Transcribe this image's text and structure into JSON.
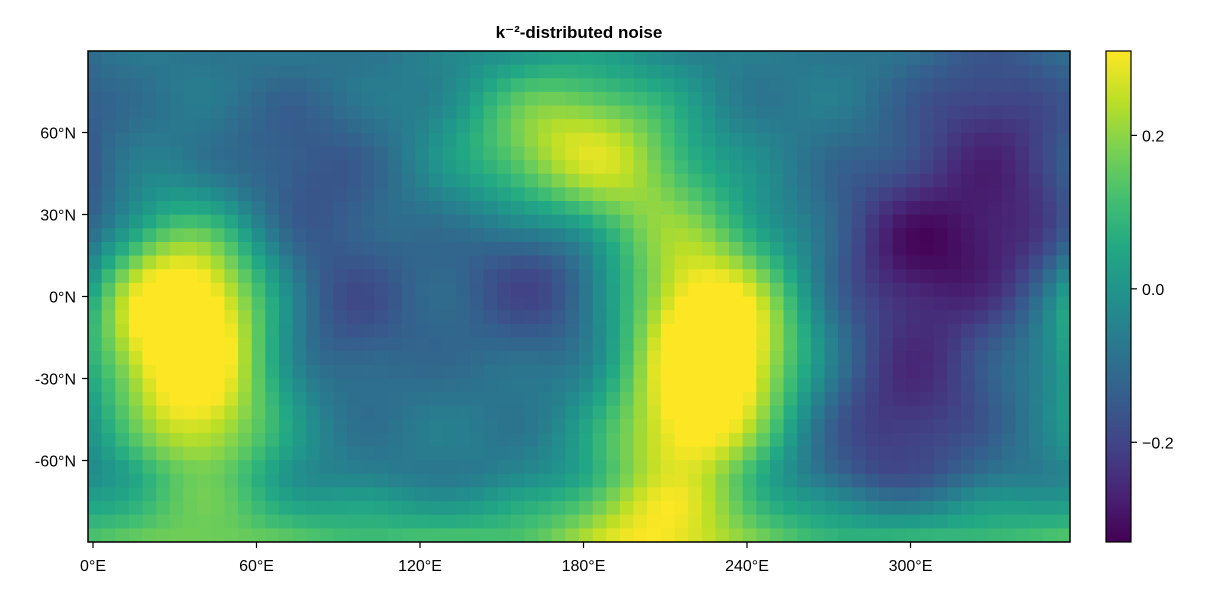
{
  "chart_data": {
    "type": "heatmap",
    "title": "k⁻²-distributed noise",
    "xlabel": "",
    "ylabel": "",
    "x_range": [
      0,
      360
    ],
    "y_range": [
      -90,
      90
    ],
    "x_ticks": [
      {
        "value": 0,
        "label": "0°E"
      },
      {
        "value": 60,
        "label": "60°E"
      },
      {
        "value": 120,
        "label": "120°E"
      },
      {
        "value": 180,
        "label": "180°E"
      },
      {
        "value": 240,
        "label": "240°E"
      },
      {
        "value": 300,
        "label": "300°E"
      }
    ],
    "y_ticks": [
      {
        "value": 60,
        "label": "60°N"
      },
      {
        "value": 30,
        "label": "30°N"
      },
      {
        "value": 0,
        "label": "0°N"
      },
      {
        "value": -30,
        "label": "-30°N"
      },
      {
        "value": -60,
        "label": "-60°N"
      }
    ],
    "colormap": "viridis",
    "colorbar": {
      "range": [
        -0.33,
        0.31
      ],
      "ticks": [
        {
          "value": 0.2,
          "label": "0.2"
        },
        {
          "value": 0.0,
          "label": "0.0"
        },
        {
          "value": -0.2,
          "label": "−0.2"
        }
      ]
    },
    "grid": false,
    "features": [
      {
        "lon": 36,
        "lat": -20,
        "value": 0.24
      },
      {
        "lon": 40,
        "lat": -52,
        "value": 0.24
      },
      {
        "lon": 15,
        "lat": 0,
        "value": 0.18
      },
      {
        "lon": 40,
        "lat": 5,
        "value": 0.2
      },
      {
        "lon": 160,
        "lat": 55,
        "value": 0.2
      },
      {
        "lon": 190,
        "lat": 53,
        "value": 0.23
      },
      {
        "lon": 210,
        "lat": 22,
        "value": 0.12
      },
      {
        "lon": 228,
        "lat": -25,
        "value": 0.31
      },
      {
        "lon": 230,
        "lat": -5,
        "value": 0.22
      },
      {
        "lon": 218,
        "lat": -55,
        "value": 0.23
      },
      {
        "lon": 200,
        "lat": -82,
        "value": 0.12
      },
      {
        "lon": 300,
        "lat": 18,
        "value": -0.33
      },
      {
        "lon": 345,
        "lat": 18,
        "value": -0.3
      },
      {
        "lon": 330,
        "lat": 65,
        "value": -0.26
      },
      {
        "lon": 165,
        "lat": 10,
        "value": -0.28
      },
      {
        "lon": 90,
        "lat": -5,
        "value": -0.22
      },
      {
        "lon": 75,
        "lat": 45,
        "value": -0.2
      },
      {
        "lon": 305,
        "lat": -30,
        "value": -0.22
      },
      {
        "lon": 290,
        "lat": -55,
        "value": -0.2
      }
    ]
  }
}
